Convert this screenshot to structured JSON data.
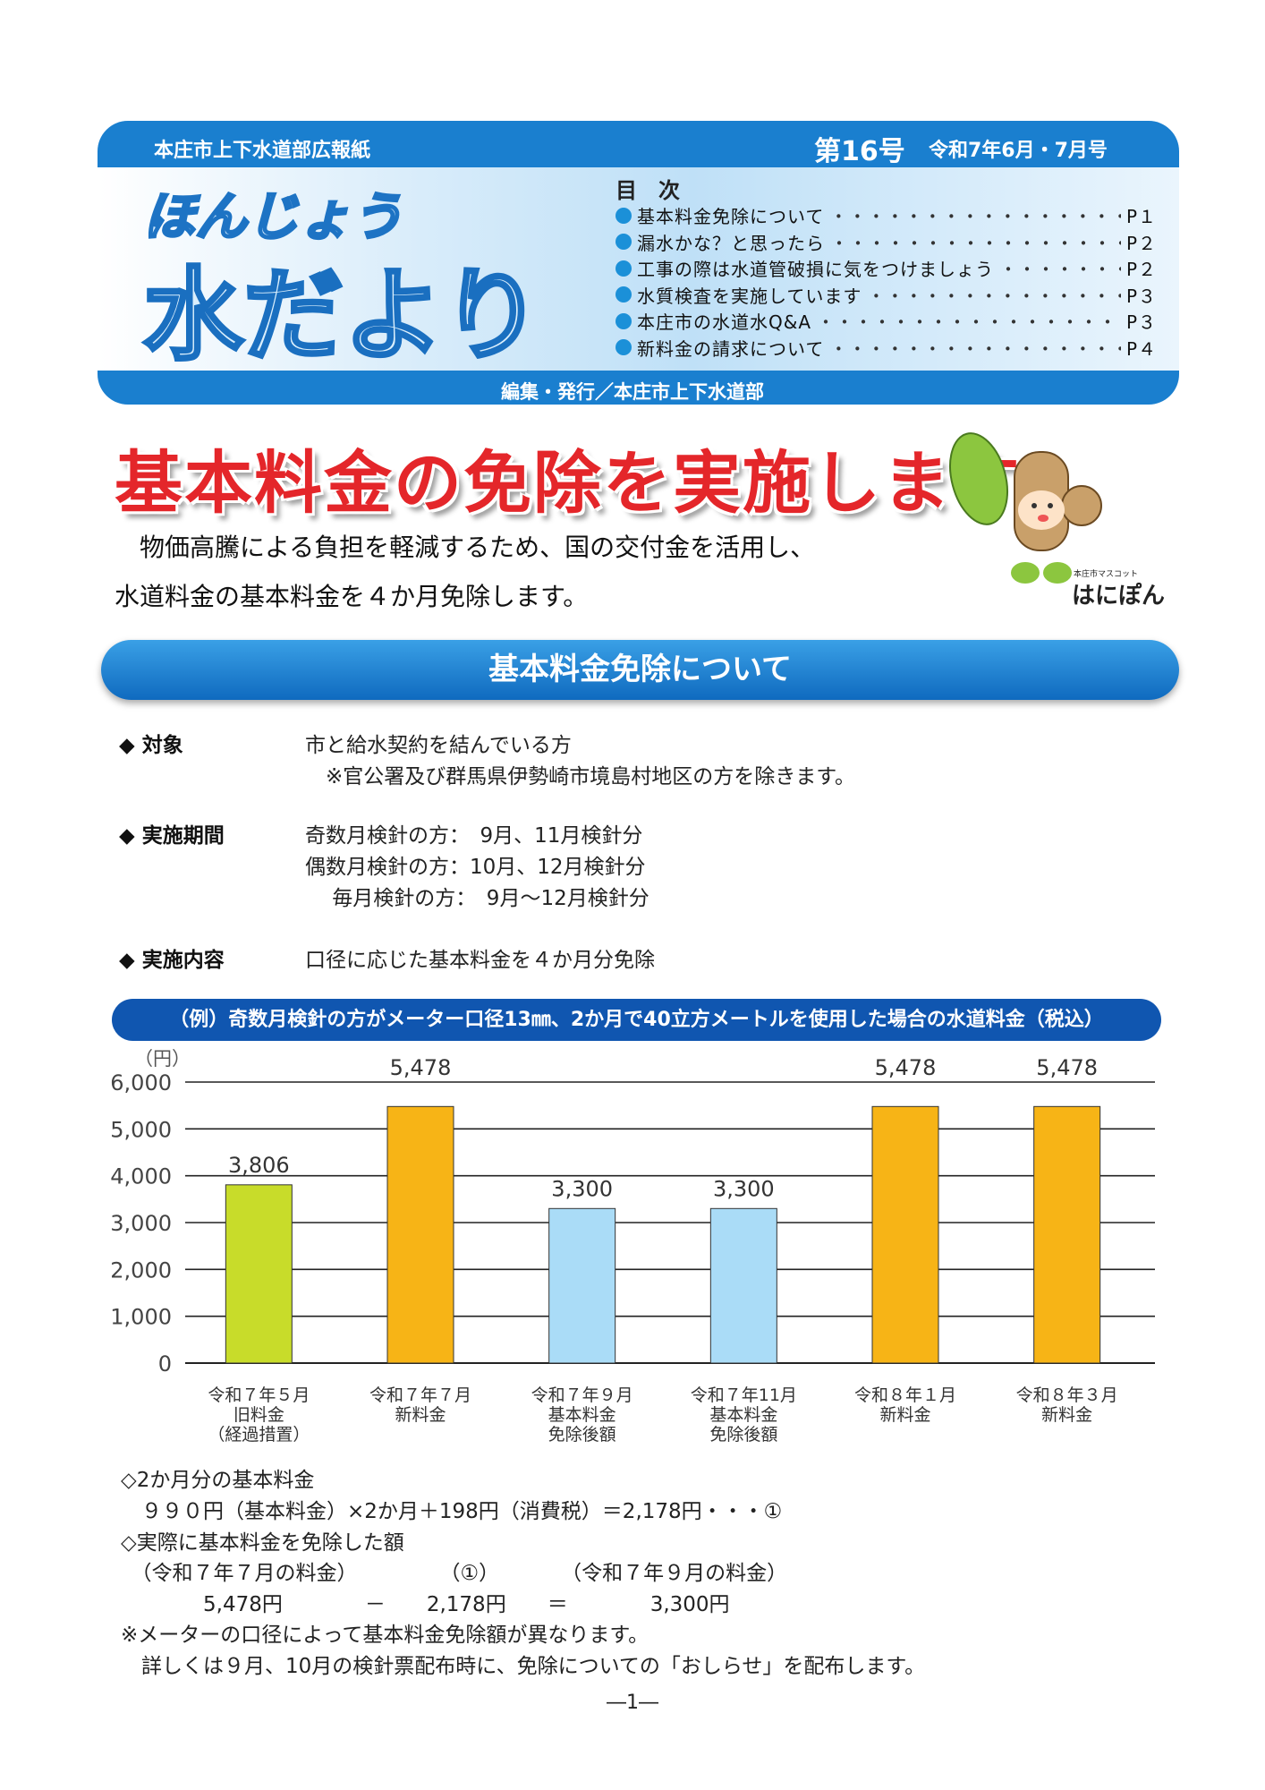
{
  "header": {
    "publisher": "本庄市上下水道部広報紙",
    "issue": "第16号",
    "issue_date": "令和7年6月・7月号",
    "logo_line1": "ほんじょう",
    "logo_line2": "水だより",
    "toc_title": "目　次",
    "toc": [
      {
        "label": "基本料金免除について",
        "page": "P１"
      },
      {
        "label": "漏水かな？と思ったら",
        "page": "P２"
      },
      {
        "label": "工事の際は水道管破損に気をつけましょう",
        "page": "P２"
      },
      {
        "label": "水質検査を実施しています",
        "page": "P３"
      },
      {
        "label": "本庄市の水道水Q&A",
        "page": "P３"
      },
      {
        "label": "新料金の請求について",
        "page": "P４"
      }
    ],
    "editor": "編集・発行／本庄市上下水道部"
  },
  "headline": "基本料金の免除を実施します",
  "intro": [
    "　物価高騰による負担を軽減するため、国の交付金を活用し、",
    "水道料金の基本料金を４か月免除します。"
  ],
  "mascot": {
    "caption": "本庄市マスコット",
    "name": "はにぽん"
  },
  "section_title": "基本料金免除について",
  "details": [
    {
      "label": "◆ 対象",
      "lines": [
        "市と給水契約を結んでいる方",
        "　※官公署及び群馬県伊勢崎市境島村地区の方を除きます。"
      ]
    },
    {
      "label": "◆ 実施期間",
      "lines": [
        "奇数月検針の方：　9月、11月検針分",
        "偶数月検針の方：10月、12月検針分",
        "　 毎月検針の方：　9月～12月検針分"
      ]
    },
    {
      "label": "◆ 実施内容",
      "lines": [
        "口径に応じた基本料金を４か月分免除"
      ]
    }
  ],
  "chart_banner": "（例）奇数月検針の方がメーター口径13㎜、2か月で40立方メートルを使用した場合の水道料金（税込）",
  "chart_data": {
    "type": "bar",
    "title": "（例）奇数月検針の方がメーター口径13㎜、2か月で40立方メートルを使用した場合の水道料金（税込）",
    "ylabel": "（円）",
    "ylim": [
      0,
      6000
    ],
    "yticks": [
      "0",
      "1,000",
      "2,000",
      "3,000",
      "4,000",
      "5,000",
      "6,000"
    ],
    "grid": true,
    "categories": [
      [
        "令和７年５月",
        "旧料金",
        "（経過措置）"
      ],
      [
        "令和７年７月",
        "新料金"
      ],
      [
        "令和７年９月",
        "基本料金",
        "免除後額"
      ],
      [
        "令和７年11月",
        "基本料金",
        "免除後額"
      ],
      [
        "令和８年１月",
        "新料金"
      ],
      [
        "令和８年３月",
        "新料金"
      ]
    ],
    "values": [
      3806,
      5478,
      3300,
      3300,
      5478,
      5478
    ],
    "data_labels": [
      "3,806",
      "5,478",
      "3,300",
      "3,300",
      "5,478",
      "5,478"
    ],
    "colors": [
      "#c8dc2a",
      "#f7b416",
      "#aadcf7",
      "#aadcf7",
      "#f7b416",
      "#f7b416"
    ]
  },
  "footer_notes": [
    "◇2か月分の基本料金",
    "　９９０円（基本料金）×2か月＋198円（消費税）＝2,178円・・・①",
    "◇実際に基本料金を免除した額",
    "　（令和７年７月の料金）　　　　　（①）　　　　（令和７年９月の料金）",
    "　　　　5,478円　　　　－　　2,178円　　＝　　　　3,300円",
    "※メーターの口径によって基本料金免除額が異なります。",
    "　詳しくは９月、10月の検針票配布時に、免除についての「おしらせ」を配布します。"
  ],
  "page_number": "―1―"
}
